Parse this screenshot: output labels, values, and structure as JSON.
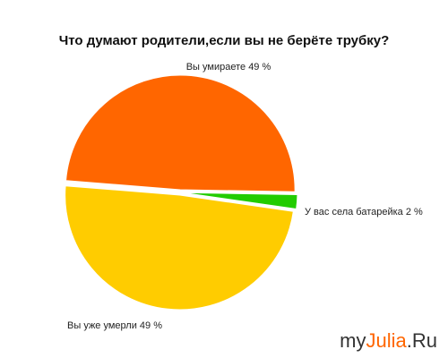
{
  "chart_data": {
    "type": "pie",
    "title": "Что думают родители,если вы не берёте трубку?",
    "categories": [
      "Вы умираете",
      "У вас села батарейка",
      "Вы уже умерли"
    ],
    "values": [
      49,
      2,
      49
    ],
    "value_labels": [
      "49 %",
      "2 %",
      "49 %"
    ],
    "colors": [
      "#ff6600",
      "#22cc00",
      "#ffcc00"
    ]
  },
  "watermark": {
    "parts": [
      "my",
      "Julia",
      ".Ru"
    ]
  }
}
